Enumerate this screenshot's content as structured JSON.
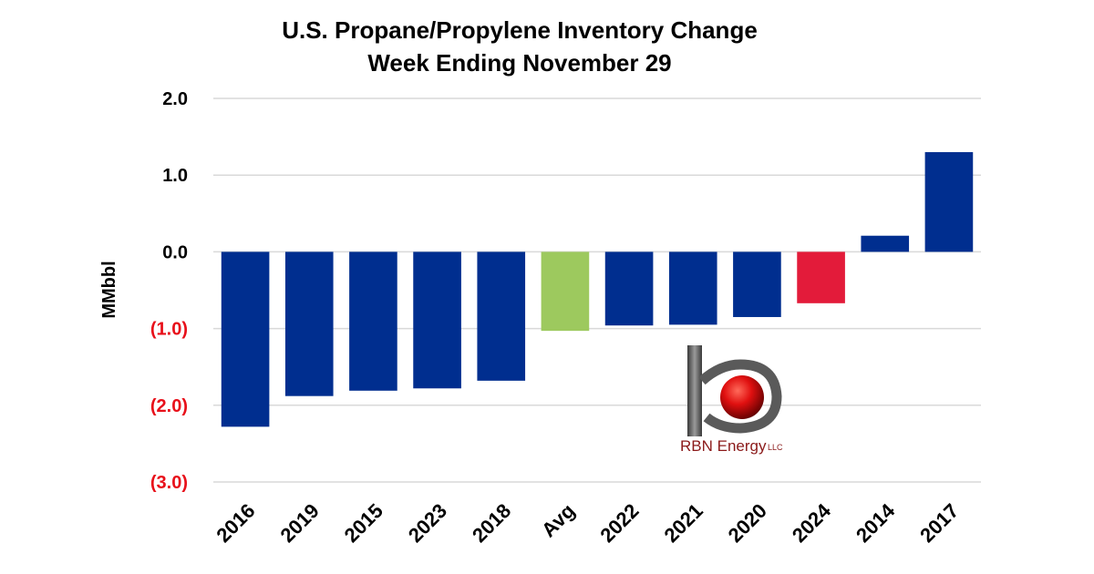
{
  "chart_data": {
    "type": "bar",
    "title": "U.S. Propane/Propylene Inventory Change",
    "subtitle": "Week Ending November 29",
    "ylabel": "MMbbl",
    "xlabel": "",
    "ylim": [
      -3.0,
      2.0
    ],
    "yticks": [
      {
        "value": 2.0,
        "label": "2.0"
      },
      {
        "value": 1.0,
        "label": "1.0"
      },
      {
        "value": 0.0,
        "label": "0.0"
      },
      {
        "value": -1.0,
        "label": "(1.0)"
      },
      {
        "value": -2.0,
        "label": "(2.0)"
      },
      {
        "value": -3.0,
        "label": "(3.0)"
      }
    ],
    "grid": true,
    "categories": [
      "2016",
      "2019",
      "2015",
      "2023",
      "2018",
      "Avg",
      "2022",
      "2021",
      "2020",
      "2024",
      "2014",
      "2017"
    ],
    "values": [
      -2.28,
      -1.88,
      -1.81,
      -1.78,
      -1.68,
      -1.03,
      -0.96,
      -0.95,
      -0.85,
      -0.67,
      0.21,
      1.3
    ],
    "colors": [
      "#002e8f",
      "#002e8f",
      "#002e8f",
      "#002e8f",
      "#002e8f",
      "#9dc95e",
      "#002e8f",
      "#002e8f",
      "#002e8f",
      "#e31b3a",
      "#002e8f",
      "#002e8f"
    ],
    "positive_tick_color": "#000000",
    "negative_tick_color": "#e8101a",
    "grid_color": "#d9d9d9"
  },
  "logo": {
    "name": "RBN Energy",
    "text": "RBN Energy",
    "suffix": "LLC"
  }
}
